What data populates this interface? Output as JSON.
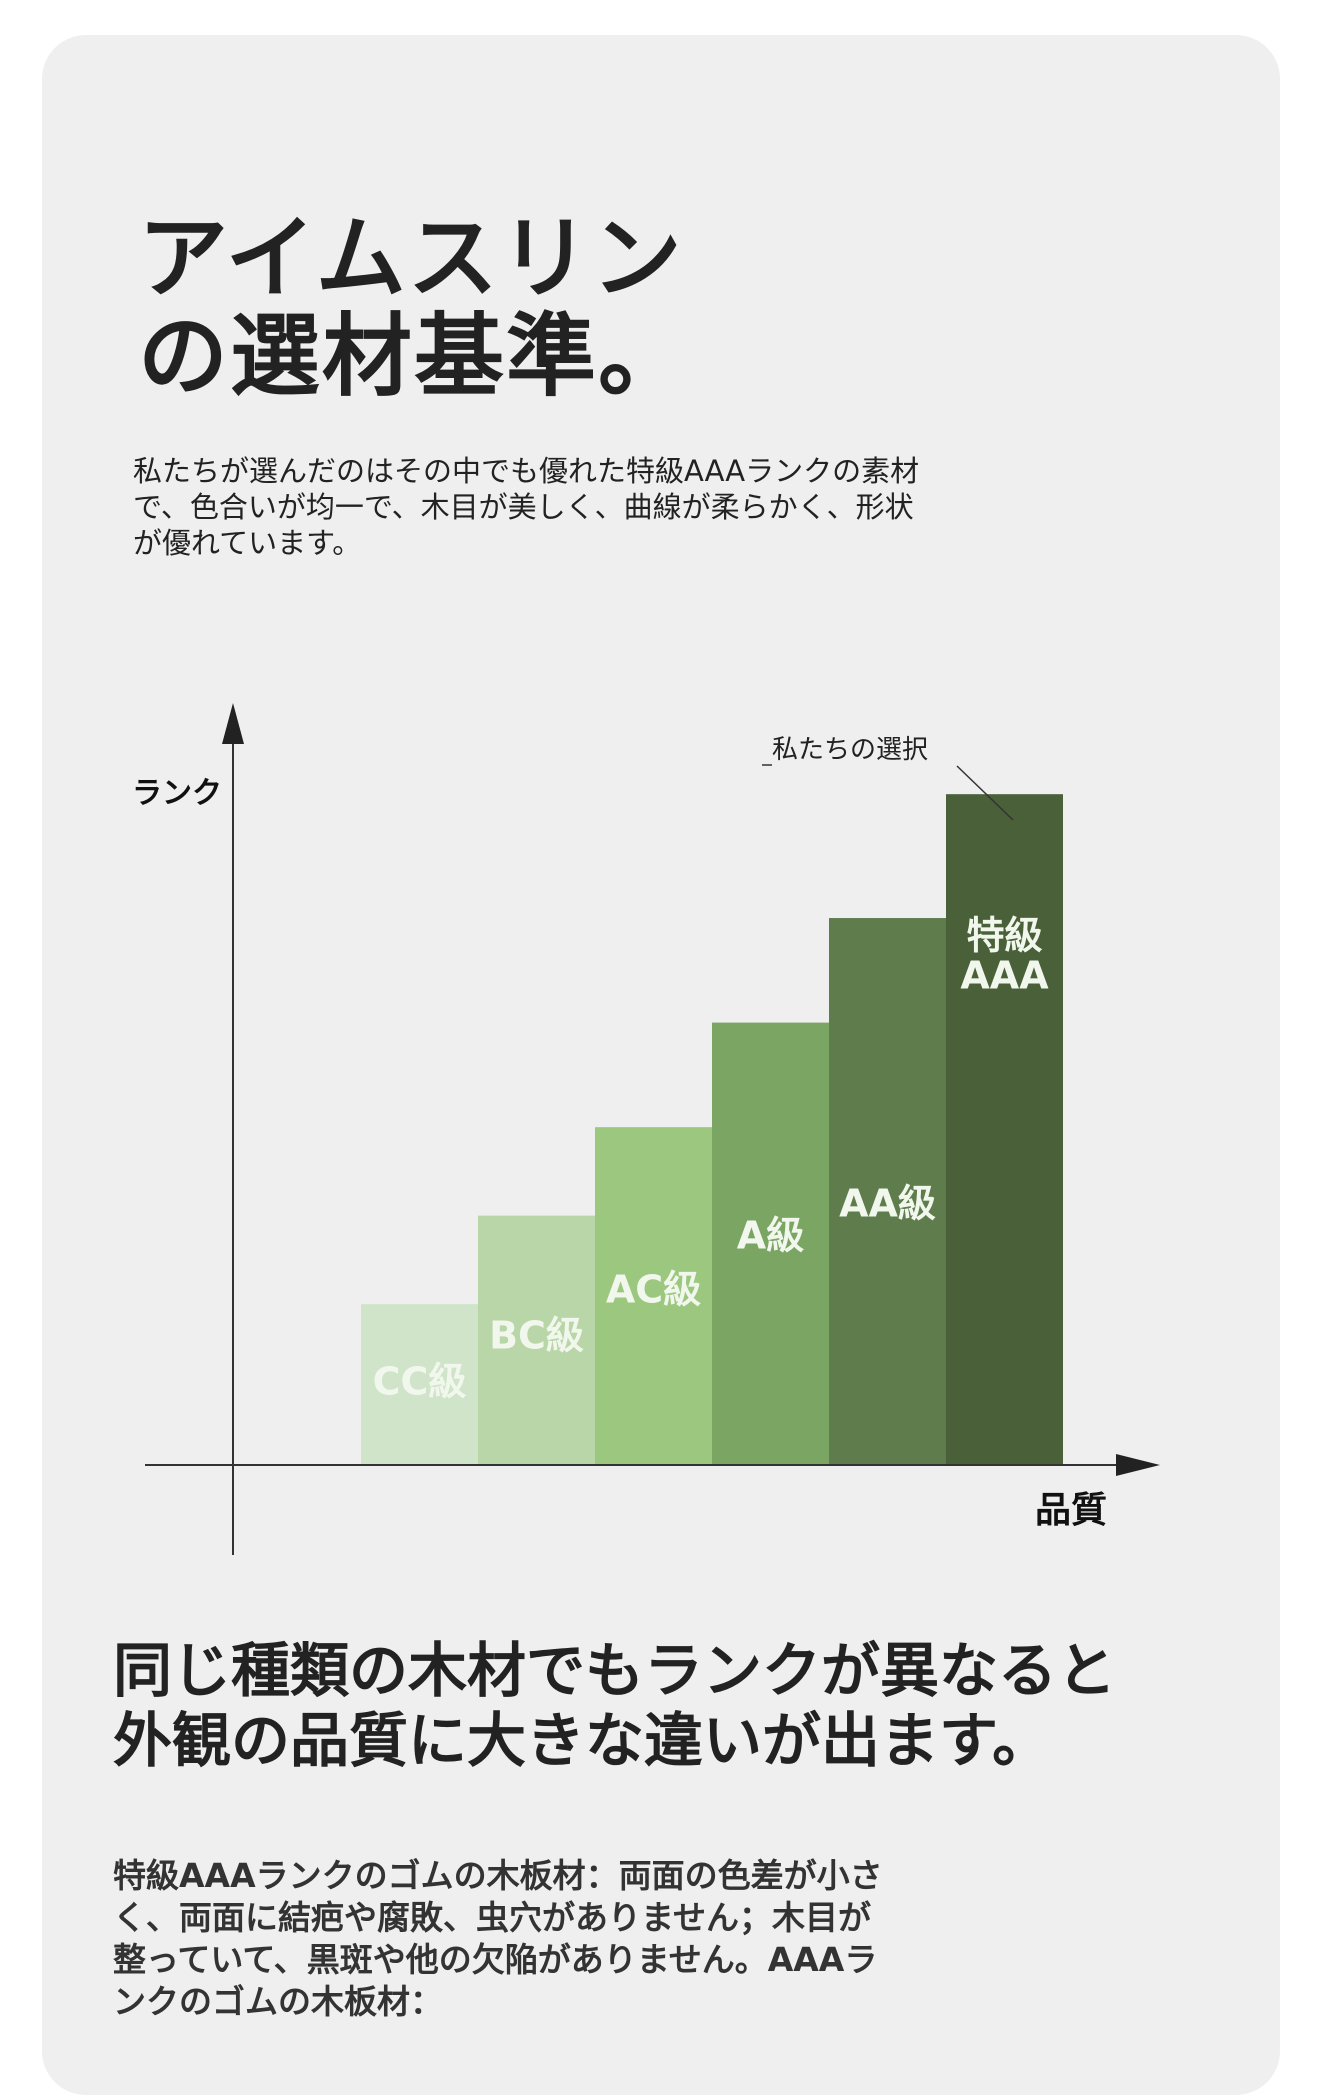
{
  "header": {
    "title_line1": "アイムスリン",
    "title_line2": "の選材基準。",
    "intro": "私たちが選んだのはその中でも優れた特級AAAランクの素材で、色合いが均一で、木目が美しく、曲線が柔らかく、形状が優れています。"
  },
  "chart_data": {
    "type": "bar",
    "categories": [
      "CC級",
      "BC級",
      "AC級",
      "A級",
      "AA級",
      "特級\nAAA"
    ],
    "values": [
      1,
      1.55,
      2.1,
      2.75,
      3.4,
      4.17
    ],
    "ylabel": "ランク",
    "xlabel": "品質",
    "annotation": "私たちの選択",
    "annotated_category": "特級\nAAA",
    "ylim": [
      0,
      4.6
    ],
    "colors": [
      "#cfe4c9",
      "#b8d6a7",
      "#9bc77f",
      "#7aa563",
      "#5e7c4c",
      "#4a6039"
    ],
    "label_color": "#f2f7ee"
  },
  "section": {
    "heading_line1": "同じ種類の木材でもランクが異なると",
    "heading_line2": "外観の品質に大きな違いが出ます。",
    "body": "特級AAAランクのゴムの木板材：両面の色差が小さく、両面に結疤や腐敗、虫穴がありません；木目が整っていて、黒斑や他の欠陥がありません。AAAランクのゴムの木板材："
  }
}
